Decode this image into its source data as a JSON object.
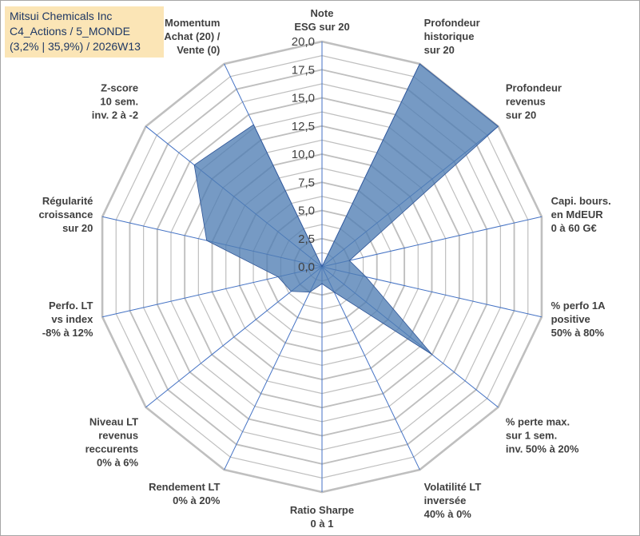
{
  "title_box": {
    "line1": "Mitsui Chemicals Inc",
    "line2": "C4_Actions / 5_MONDE",
    "line3": "(3,2% | 35,9%) / 2026W13"
  },
  "colors": {
    "fill": "#4f7db3",
    "grid": "#bfbfbf",
    "spoke": "#4472c4",
    "title_bg": "#fbe5b6",
    "title_text": "#1f3864"
  },
  "chart_data": {
    "type": "radar",
    "rmin": 0,
    "rmax": 20,
    "ring_step": 1.25,
    "ticks": [
      "0,0",
      "2,5",
      "5,0",
      "7,5",
      "10,0",
      "12,5",
      "15,0",
      "17,5",
      "20,0"
    ],
    "axes": [
      {
        "label": [
          "Note",
          "ESG sur 20"
        ],
        "value": 0
      },
      {
        "label": [
          "Profondeur",
          "historique",
          "sur 20"
        ],
        "value": 20
      },
      {
        "label": [
          "Profondeur",
          "revenus",
          "sur 20"
        ],
        "value": 20
      },
      {
        "label": [
          "Capi. bours.",
          "en MdEUR",
          "0 à 60 G€"
        ],
        "value": 2.5
      },
      {
        "label": [
          "% perfo 1A",
          "positive",
          "50% à 80%"
        ],
        "value": 4
      },
      {
        "label": [
          "% perte max.",
          "sur 1 sem.",
          "inv. 50% à 20%"
        ],
        "value": 12.5
      },
      {
        "label": [
          "Volatilité LT",
          "inversée",
          "40% à 0%"
        ],
        "value": 2.5
      },
      {
        "label": [
          "Ratio Sharpe",
          "0 à 1"
        ],
        "value": 1.5
      },
      {
        "label": [
          "Rendement LT",
          "0% à 20%"
        ],
        "value": 2.5
      },
      {
        "label": [
          "Niveau LT",
          "revenus",
          "reccurents",
          "0% à 6%"
        ],
        "value": 3.5
      },
      {
        "label": [
          "Perfo. LT",
          "vs index",
          "-8% à 12%"
        ],
        "value": 4
      },
      {
        "label": [
          "Régularité",
          "croissance",
          "sur 20"
        ],
        "value": 10.5
      },
      {
        "label": [
          "Z-score",
          "10 sem.",
          "inv. 2 à -2"
        ],
        "value": 14.5
      },
      {
        "label": [
          "Momentum",
          "Achat (20) /",
          "Vente (0)"
        ],
        "value": 14
      }
    ]
  }
}
